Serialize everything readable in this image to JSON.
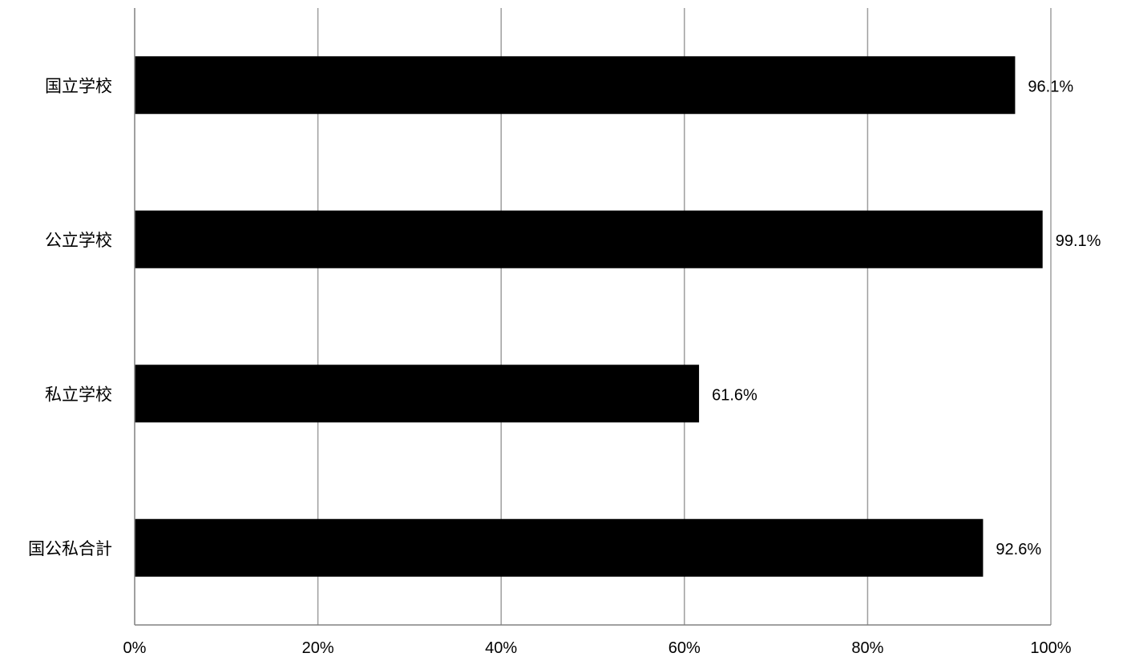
{
  "chart_data": {
    "type": "bar",
    "orientation": "horizontal",
    "categories": [
      "国立学校",
      "公立学校",
      "私立学校",
      "国公私合計"
    ],
    "values": [
      96.1,
      99.1,
      61.6,
      92.6
    ],
    "data_labels": [
      "96.1%",
      "99.1%",
      "61.6%",
      "92.6%"
    ],
    "x_ticks": [
      "0%",
      "20%",
      "40%",
      "60%",
      "80%",
      "100%"
    ],
    "xlim": [
      0,
      100
    ],
    "x_unit": "%",
    "grid": true,
    "legend": "none",
    "title": "",
    "xlabel": "",
    "ylabel": "",
    "colors": {
      "bar": "#000000",
      "grid": "#9e9e9e",
      "axis": "#808080",
      "background": "#ffffff"
    }
  }
}
